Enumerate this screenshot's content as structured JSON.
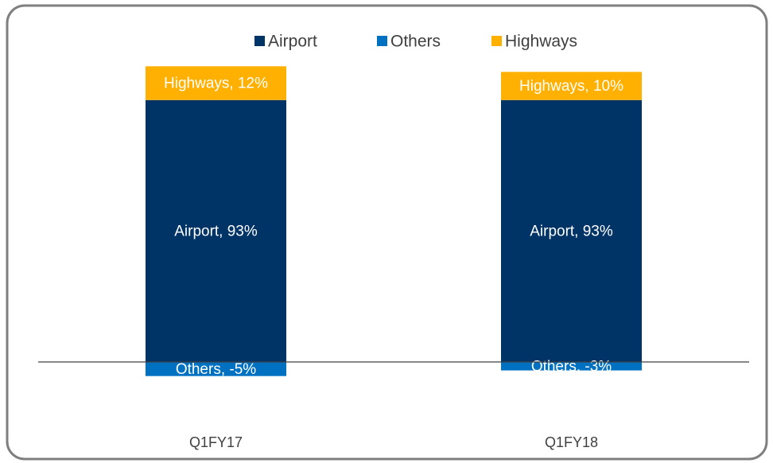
{
  "chart_data": {
    "type": "stacked_bar",
    "categories": [
      "Q1FY17",
      "Q1FY18"
    ],
    "series": [
      {
        "name": "Airport",
        "color": "#003366",
        "values": [
          93,
          93
        ],
        "value_labels": [
          "Airport, 93%",
          "Airport, 93%"
        ]
      },
      {
        "name": "Others",
        "color": "#0070c0",
        "values": [
          -5,
          -3
        ],
        "value_labels": [
          "Others, -5%",
          "Others, -3%"
        ]
      },
      {
        "name": "Highways",
        "color": "#ffb000",
        "values": [
          12,
          10
        ],
        "value_labels": [
          "Highways, 12%",
          "Highways, 10%"
        ]
      }
    ],
    "ylim": [
      -20,
      110
    ],
    "legend": "top"
  }
}
